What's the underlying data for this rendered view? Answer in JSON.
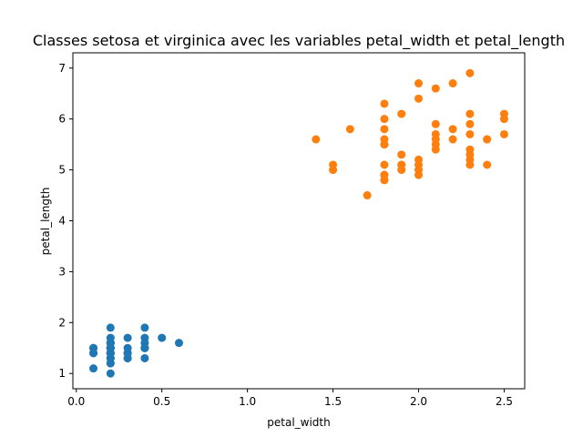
{
  "chart_data": {
    "type": "scatter",
    "title": "Classes setosa et virginica avec les variables petal_width et petal_length",
    "xlabel": "petal_width",
    "ylabel": "petal_length",
    "xlim": [
      -0.02,
      2.62
    ],
    "ylim": [
      0.7,
      7.3
    ],
    "xticks": [
      0.0,
      0.5,
      1.0,
      1.5,
      2.0,
      2.5
    ],
    "xtick_labels": [
      "0.0",
      "0.5",
      "1.0",
      "1.5",
      "2.0",
      "2.5"
    ],
    "yticks": [
      1,
      2,
      3,
      4,
      5,
      6,
      7
    ],
    "ytick_labels": [
      "1",
      "2",
      "3",
      "4",
      "5",
      "6",
      "7"
    ],
    "grid": false,
    "legend": null,
    "series": [
      {
        "color": "#1f77b4",
        "x": [
          0.2,
          0.2,
          0.2,
          0.2,
          0.2,
          0.4,
          0.3,
          0.2,
          0.2,
          0.1,
          0.2,
          0.2,
          0.1,
          0.1,
          0.2,
          0.4,
          0.4,
          0.3,
          0.3,
          0.3,
          0.2,
          0.4,
          0.2,
          0.5,
          0.2,
          0.2,
          0.4,
          0.2,
          0.2,
          0.2,
          0.2,
          0.4,
          0.1,
          0.2,
          0.2,
          0.2,
          0.2,
          0.1,
          0.2,
          0.2,
          0.3,
          0.3,
          0.2,
          0.6,
          0.4,
          0.3,
          0.2,
          0.2,
          0.2,
          0.2
        ],
        "y": [
          1.4,
          1.4,
          1.3,
          1.5,
          1.4,
          1.7,
          1.4,
          1.5,
          1.4,
          1.5,
          1.5,
          1.6,
          1.4,
          1.1,
          1.2,
          1.5,
          1.3,
          1.4,
          1.7,
          1.5,
          1.7,
          1.5,
          1.0,
          1.7,
          1.9,
          1.6,
          1.6,
          1.5,
          1.4,
          1.6,
          1.6,
          1.5,
          1.5,
          1.4,
          1.5,
          1.2,
          1.3,
          1.4,
          1.3,
          1.5,
          1.3,
          1.3,
          1.3,
          1.6,
          1.9,
          1.4,
          1.6,
          1.4,
          1.5,
          1.4
        ]
      },
      {
        "color": "#ff7f0e",
        "x": [
          2.5,
          1.9,
          2.1,
          1.8,
          2.2,
          2.1,
          1.7,
          1.8,
          1.8,
          2.5,
          2.0,
          1.9,
          2.1,
          2.0,
          2.4,
          2.3,
          1.8,
          2.2,
          2.3,
          1.5,
          2.3,
          2.0,
          2.0,
          1.8,
          2.1,
          1.8,
          1.8,
          1.8,
          2.1,
          1.6,
          1.9,
          2.0,
          2.2,
          1.5,
          1.4,
          2.3,
          2.4,
          1.8,
          1.8,
          2.1,
          2.4,
          2.3,
          1.9,
          2.3,
          2.5,
          2.3,
          1.9,
          2.0,
          2.3,
          1.8
        ],
        "y": [
          6.0,
          5.1,
          5.9,
          5.6,
          5.8,
          6.6,
          4.5,
          6.3,
          5.8,
          6.1,
          5.1,
          5.3,
          5.5,
          5.0,
          5.1,
          5.3,
          5.5,
          6.7,
          6.9,
          5.0,
          5.7,
          4.9,
          6.7,
          4.9,
          5.7,
          6.0,
          4.8,
          4.9,
          5.6,
          5.8,
          6.1,
          6.4,
          5.6,
          5.1,
          5.6,
          6.1,
          5.6,
          5.5,
          4.8,
          5.4,
          5.6,
          5.1,
          5.1,
          5.9,
          5.7,
          5.2,
          5.0,
          5.2,
          5.4,
          5.1
        ]
      }
    ]
  }
}
